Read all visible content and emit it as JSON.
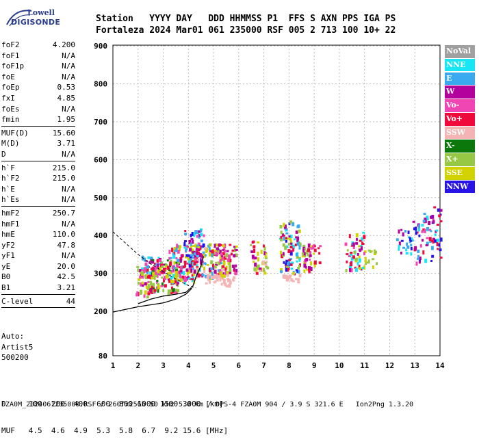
{
  "logo": {
    "line1": "Lowell",
    "line2": "DIGISONDE"
  },
  "header": {
    "labels": "Station   YYYY DAY   DDD HHMMSS P1  FFS S AXN PPS IGA PS",
    "values": "Fortaleza 2024 Mar01 061 235000 RSF 005 2 713 100 10+ 22"
  },
  "params": {
    "group1": [
      {
        "name": "foF2",
        "value": "4.200"
      },
      {
        "name": "foF1",
        "value": "N/A"
      },
      {
        "name": "foF1p",
        "value": "N/A"
      },
      {
        "name": "foE",
        "value": "N/A"
      },
      {
        "name": "foEp",
        "value": "0.53"
      },
      {
        "name": "fxI",
        "value": "4.85"
      },
      {
        "name": "foEs",
        "value": "N/A"
      },
      {
        "name": "fmin",
        "value": "1.95"
      }
    ],
    "group2": [
      {
        "name": "MUF(D)",
        "value": "15.60"
      },
      {
        "name": "M(D)",
        "value": "3.71"
      },
      {
        "name": "D",
        "value": "N/A"
      }
    ],
    "group3": [
      {
        "name": "h`F",
        "value": "215.0"
      },
      {
        "name": "h`F2",
        "value": "215.0"
      },
      {
        "name": "h`E",
        "value": "N/A"
      },
      {
        "name": "h`Es",
        "value": "N/A"
      }
    ],
    "group4": [
      {
        "name": "hmF2",
        "value": "250.7"
      },
      {
        "name": "hmF1",
        "value": "N/A"
      },
      {
        "name": "hmE",
        "value": "110.0"
      },
      {
        "name": "yF2",
        "value": "47.8"
      },
      {
        "name": "yF1",
        "value": "N/A"
      },
      {
        "name": "yE",
        "value": "20.0"
      },
      {
        "name": "B0",
        "value": "42.5"
      },
      {
        "name": "B1",
        "value": "3.21"
      }
    ],
    "group5": [
      {
        "name": "C-level",
        "value": "44"
      }
    ]
  },
  "auto": {
    "line1": "Auto:",
    "line2": "Artist5",
    "line3": "500200"
  },
  "legend": [
    {
      "label": "NoVal",
      "color": "#a0a0a0"
    },
    {
      "label": "NNE",
      "color": "#19e6f5"
    },
    {
      "label": "E",
      "color": "#3aaaf0"
    },
    {
      "label": "W",
      "color": "#b4009c"
    },
    {
      "label": "Vo-",
      "color": "#f046b4"
    },
    {
      "label": "Vo+",
      "color": "#f00a3c"
    },
    {
      "label": "SSW",
      "color": "#f5b4b4"
    },
    {
      "label": "X-",
      "color": "#0a780a"
    },
    {
      "label": "X+",
      "color": "#96c846"
    },
    {
      "label": "SSE",
      "color": "#d2d200"
    },
    {
      "label": "NNW",
      "color": "#2814e6"
    }
  ],
  "dtable": {
    "row1": "D     100  200  400  600  800 1000 1500 3000 [km]",
    "row2": "MUF   4.5  4.6  4.9  5.3  5.8  6.7  9.2 15.6 [MHz]"
  },
  "footer": "FZA0M_2024061235000.RSF / 260fx256h 50 kHz 5.0 km / DPS-4 FZA0M 904 / 3.9 S 321.6 E   Ion2Png 1.3.20",
  "chart_data": {
    "type": "scatter",
    "x_ticks": [
      "1",
      "2",
      "3",
      "4",
      "5",
      "6",
      "7",
      "8",
      "9",
      "10",
      "11",
      "12",
      "13",
      "14"
    ],
    "y_ticks": [
      "80",
      "200",
      "300",
      "400",
      "500",
      "600",
      "700",
      "800",
      "900"
    ],
    "xlim": [
      1,
      14
    ],
    "ylim": [
      80,
      900
    ],
    "grid": true,
    "legend_position": "right",
    "clusters": [
      {
        "f": [
          1.9,
          2.6
        ],
        "h": [
          240,
          320
        ],
        "colors": [
          "Vo+",
          "W",
          "SSE",
          "X+",
          "Vo-"
        ],
        "n": 70
      },
      {
        "f": [
          2.1,
          3.0
        ],
        "h": [
          300,
          350
        ],
        "colors": [
          "E",
          "NNE",
          "W",
          "Vo+",
          "Vo-"
        ],
        "n": 40
      },
      {
        "f": [
          2.5,
          3.6
        ],
        "h": [
          250,
          340
        ],
        "colors": [
          "W",
          "Vo+",
          "SSE",
          "X+",
          "X-",
          "Vo-"
        ],
        "n": 110
      },
      {
        "f": [
          3.2,
          4.2
        ],
        "h": [
          280,
          380
        ],
        "colors": [
          "W",
          "Vo+",
          "E",
          "NNE",
          "SSE",
          "Vo-"
        ],
        "n": 110
      },
      {
        "f": [
          3.8,
          4.6
        ],
        "h": [
          320,
          420
        ],
        "colors": [
          "E",
          "NNE",
          "Vo+",
          "W",
          "NNW",
          "Vo-"
        ],
        "n": 70
      },
      {
        "f": [
          4.2,
          5.4
        ],
        "h": [
          290,
          380
        ],
        "colors": [
          "SSE",
          "X+",
          "Vo+",
          "W",
          "SSW",
          "E"
        ],
        "n": 100
      },
      {
        "f": [
          5.0,
          5.9
        ],
        "h": [
          300,
          380
        ],
        "colors": [
          "SSE",
          "X+",
          "Vo+",
          "Vo-",
          "W"
        ],
        "n": 70
      },
      {
        "f": [
          4.6,
          5.8
        ],
        "h": [
          270,
          300
        ],
        "colors": [
          "SSW"
        ],
        "n": 30
      },
      {
        "f": [
          6.4,
          7.1
        ],
        "h": [
          300,
          390
        ],
        "colors": [
          "SSE",
          "X+",
          "W",
          "Vo+",
          "SSW"
        ],
        "n": 45
      },
      {
        "f": [
          7.6,
          8.4
        ],
        "h": [
          300,
          440
        ],
        "colors": [
          "Vo+",
          "W",
          "SSE",
          "E",
          "NNE",
          "NNW",
          "X+"
        ],
        "n": 95
      },
      {
        "f": [
          7.7,
          8.4
        ],
        "h": [
          280,
          300
        ],
        "colors": [
          "SSW"
        ],
        "n": 20
      },
      {
        "f": [
          8.5,
          9.2
        ],
        "h": [
          310,
          380
        ],
        "colors": [
          "SSE",
          "X+",
          "W",
          "Vo+",
          "Vo-"
        ],
        "n": 45
      },
      {
        "f": [
          10.2,
          11.0
        ],
        "h": [
          310,
          410
        ],
        "colors": [
          "Vo+",
          "W",
          "SSE",
          "X+",
          "Vo-",
          "NNE"
        ],
        "n": 55
      },
      {
        "f": [
          11.0,
          11.5
        ],
        "h": [
          320,
          370
        ],
        "colors": [
          "SSE",
          "X+"
        ],
        "n": 15
      },
      {
        "f": [
          12.2,
          12.9
        ],
        "h": [
          350,
          420
        ],
        "colors": [
          "E",
          "NNE",
          "W",
          "NNW"
        ],
        "n": 25
      },
      {
        "f": [
          12.9,
          13.7
        ],
        "h": [
          330,
          460
        ],
        "colors": [
          "E",
          "NNE",
          "W",
          "Vo+",
          "NNW",
          "Vo-"
        ],
        "n": 55
      },
      {
        "f": [
          13.7,
          14.0
        ],
        "h": [
          340,
          480
        ],
        "colors": [
          "NNW",
          "Vo+",
          "W",
          "NNE"
        ],
        "n": 20
      }
    ],
    "trace_curve": [
      [
        1,
        198
      ],
      [
        2,
        212
      ],
      [
        3,
        222
      ],
      [
        3.5,
        232
      ],
      [
        3.9,
        245
      ],
      [
        4.1,
        258
      ],
      [
        4.2,
        270
      ],
      [
        4.3,
        290
      ],
      [
        4.5,
        320
      ],
      [
        4.6,
        345
      ]
    ],
    "trace_lower": [
      [
        2.0,
        220
      ],
      [
        2.5,
        232
      ],
      [
        3.0,
        240
      ],
      [
        3.5,
        245
      ],
      [
        3.9,
        250
      ],
      [
        4.1,
        262
      ]
    ],
    "trace_dashed": [
      [
        1.0,
        410
      ],
      [
        1.5,
        380
      ],
      [
        2.0,
        350
      ],
      [
        2.5,
        325
      ],
      [
        3.0,
        305
      ],
      [
        3.5,
        285
      ],
      [
        4.0,
        268
      ],
      [
        4.3,
        262
      ]
    ]
  }
}
